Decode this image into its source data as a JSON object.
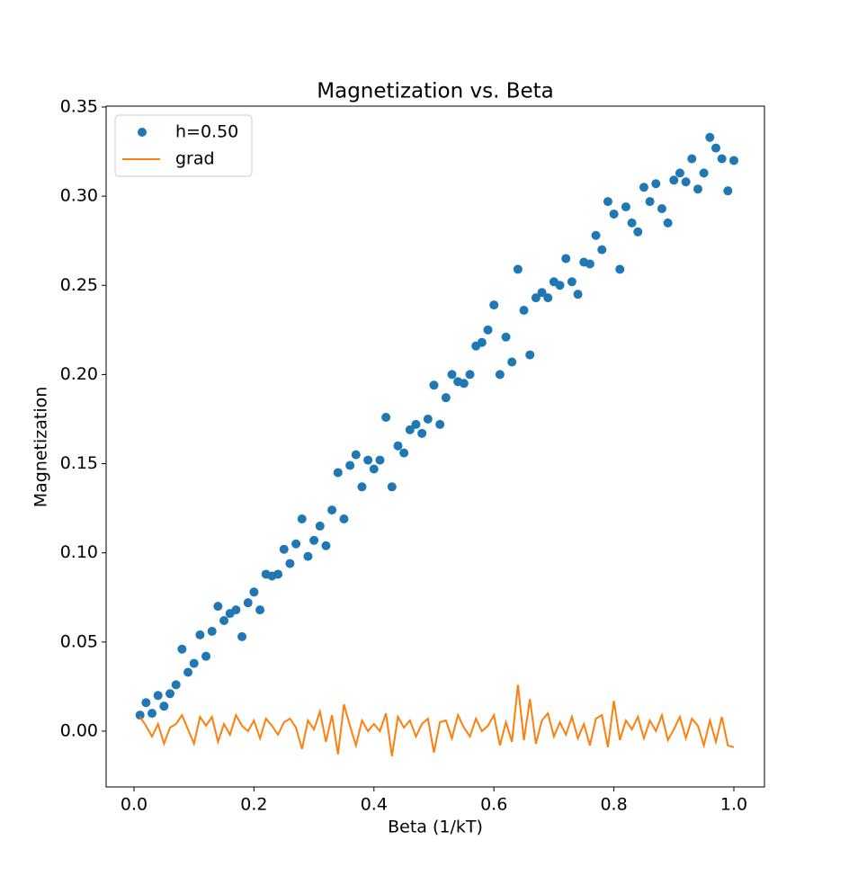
{
  "chart_data": {
    "type": "scatter",
    "title": "Magnetization vs. Beta",
    "xlabel": "Beta (1/kT)",
    "ylabel": "Magnetization",
    "x": [
      0.01,
      0.02,
      0.03,
      0.04,
      0.05,
      0.06,
      0.07,
      0.08,
      0.09,
      0.1,
      0.11,
      0.12,
      0.13,
      0.14,
      0.15,
      0.16,
      0.17,
      0.18,
      0.19,
      0.2,
      0.21,
      0.22,
      0.23,
      0.24,
      0.25,
      0.26,
      0.27,
      0.28,
      0.29,
      0.3,
      0.31,
      0.32,
      0.33,
      0.34,
      0.35,
      0.36,
      0.37,
      0.38,
      0.39,
      0.4,
      0.41,
      0.42,
      0.43,
      0.44,
      0.45,
      0.46,
      0.47,
      0.48,
      0.49,
      0.5,
      0.51,
      0.52,
      0.53,
      0.54,
      0.55,
      0.56,
      0.57,
      0.58,
      0.59,
      0.6,
      0.61,
      0.62,
      0.63,
      0.64,
      0.65,
      0.66,
      0.67,
      0.68,
      0.69,
      0.7,
      0.71,
      0.72,
      0.73,
      0.74,
      0.75,
      0.76,
      0.77,
      0.78,
      0.79,
      0.8,
      0.81,
      0.82,
      0.83,
      0.84,
      0.85,
      0.86,
      0.87,
      0.88,
      0.89,
      0.9,
      0.91,
      0.92,
      0.93,
      0.94,
      0.95,
      0.96,
      0.97,
      0.98,
      0.99,
      1.0
    ],
    "series": [
      {
        "name": "h=0.50",
        "style": "markers",
        "color": "#1f77b4",
        "values": [
          0.009,
          0.016,
          0.01,
          0.02,
          0.014,
          0.021,
          0.026,
          0.046,
          0.033,
          0.038,
          0.054,
          0.042,
          0.056,
          0.07,
          0.062,
          0.066,
          0.068,
          0.053,
          0.072,
          0.078,
          0.068,
          0.088,
          0.087,
          0.088,
          0.102,
          0.094,
          0.105,
          0.119,
          0.098,
          0.107,
          0.115,
          0.104,
          0.124,
          0.145,
          0.119,
          0.149,
          0.155,
          0.137,
          0.152,
          0.147,
          0.152,
          0.176,
          0.137,
          0.16,
          0.156,
          0.169,
          0.172,
          0.167,
          0.175,
          0.194,
          0.172,
          0.187,
          0.2,
          0.196,
          0.195,
          0.2,
          0.216,
          0.218,
          0.225,
          0.239,
          0.2,
          0.221,
          0.207,
          0.259,
          0.236,
          0.211,
          0.243,
          0.246,
          0.243,
          0.252,
          0.25,
          0.265,
          0.252,
          0.245,
          0.263,
          0.262,
          0.278,
          0.27,
          0.297,
          0.29,
          0.259,
          0.294,
          0.285,
          0.28,
          0.305,
          0.297,
          0.307,
          0.293,
          0.285,
          0.309,
          0.313,
          0.308,
          0.321,
          0.304,
          0.313,
          0.333,
          0.327,
          0.321,
          0.303,
          0.32
        ]
      },
      {
        "name": "grad",
        "style": "line",
        "color": "#ff7f0e",
        "values": [
          0.008,
          0.003,
          -0.003,
          0.004,
          -0.007,
          0.002,
          0.004,
          0.009,
          0.001,
          -0.007,
          0.008,
          0.003,
          0.008,
          -0.006,
          0.004,
          -0.002,
          0.009,
          0.003,
          0.0,
          0.006,
          -0.004,
          0.007,
          0.003,
          -0.002,
          0.005,
          0.007,
          0.002,
          -0.01,
          0.006,
          0.001,
          0.011,
          -0.006,
          0.009,
          -0.013,
          0.015,
          0.003,
          -0.008,
          0.006,
          0.0,
          0.004,
          0.0,
          0.01,
          -0.014,
          0.008,
          0.002,
          0.006,
          -0.003,
          0.004,
          0.007,
          -0.012,
          0.005,
          0.006,
          -0.004,
          0.009,
          0.002,
          -0.003,
          0.007,
          0.0,
          0.003,
          0.009,
          -0.008,
          0.005,
          -0.006,
          0.026,
          -0.005,
          0.018,
          -0.007,
          0.006,
          0.01,
          -0.003,
          0.005,
          -0.002,
          0.008,
          -0.004,
          0.004,
          -0.008,
          0.007,
          0.009,
          -0.009,
          0.017,
          -0.005,
          0.006,
          0.001,
          0.008,
          -0.004,
          0.006,
          0.0,
          0.009,
          -0.005,
          0.001,
          0.008,
          -0.004,
          0.007,
          0.003,
          -0.008,
          0.006,
          -0.006,
          0.008,
          -0.008,
          -0.009
        ]
      }
    ],
    "xlim": [
      -0.0465,
      1.051
    ],
    "ylim": [
      -0.0313,
      0.3505
    ],
    "xticks": [
      {
        "value": 0,
        "label": "0.0"
      },
      0.2,
      0.4,
      0.6,
      0.8,
      {
        "value": 1,
        "label": "1.0"
      }
    ],
    "yticks": [
      {
        "value": 0,
        "label": "0.00"
      },
      0.05,
      {
        "value": 0.1,
        "label": "0.10"
      },
      0.15,
      {
        "value": 0.2,
        "label": "0.20"
      },
      0.25,
      {
        "value": 0.3,
        "label": "0.30"
      },
      0.35
    ],
    "legend": "upper left"
  }
}
